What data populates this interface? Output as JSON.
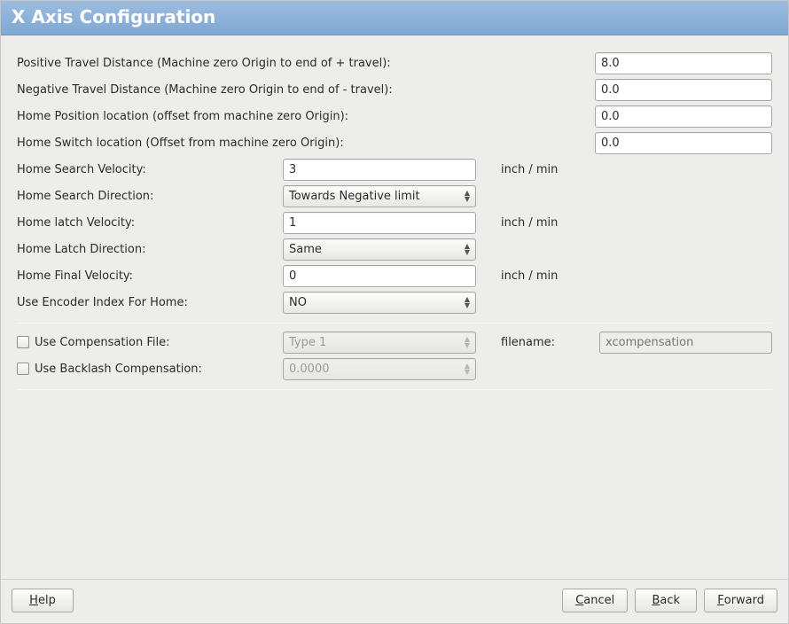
{
  "colors": {
    "titlebar_bg_top": "#9cbde0",
    "titlebar_bg_bottom": "#7fa8d2",
    "titlebar_text": "#ffffff",
    "body_bg": "#ededeb",
    "text": "#2b2b2b",
    "disabled_text": "#9a9a98",
    "border": "#a7a7a4",
    "sep": "#cfcfcd"
  },
  "title": "X Axis Configuration",
  "fields": {
    "pos_travel": {
      "label": "Positive Travel Distance  (Machine zero Origin to end of + travel):",
      "value": "8.0"
    },
    "neg_travel": {
      "label": "Negative Travel Distance  (Machine zero Origin to end of - travel):",
      "value": "0.0"
    },
    "home_pos": {
      "label": "Home Position location   (offset from machine zero Origin):",
      "value": "0.0"
    },
    "home_switch": {
      "label": "Home Switch location   (Offset from machine zero Origin):",
      "value": "0.0"
    },
    "home_search_vel": {
      "label": "Home Search Velocity:",
      "value": "3",
      "unit": "inch / min"
    },
    "home_search_dir": {
      "label": "Home Search Direction:",
      "value": "Towards Negative limit"
    },
    "home_latch_vel": {
      "label": "Home latch Velocity:",
      "value": "1",
      "unit": "inch / min"
    },
    "home_latch_dir": {
      "label": "Home Latch Direction:",
      "value": "Same"
    },
    "home_final_vel": {
      "label": "Home Final Velocity:",
      "value": "0",
      "unit": "inch / min"
    },
    "use_encoder_idx": {
      "label": "Use Encoder Index For Home:",
      "value": "NO"
    },
    "use_comp_file": {
      "label": "Use Compensation File:",
      "checked": false,
      "type_value": "Type 1",
      "filename_label": "filename:",
      "filename_placeholder": "xcompensation"
    },
    "use_backlash": {
      "label": "Use Backlash Compensation:",
      "checked": false,
      "value": "0.0000"
    }
  },
  "buttons": {
    "help": "Help",
    "cancel": "Cancel",
    "back": "Back",
    "forward": "Forward"
  }
}
